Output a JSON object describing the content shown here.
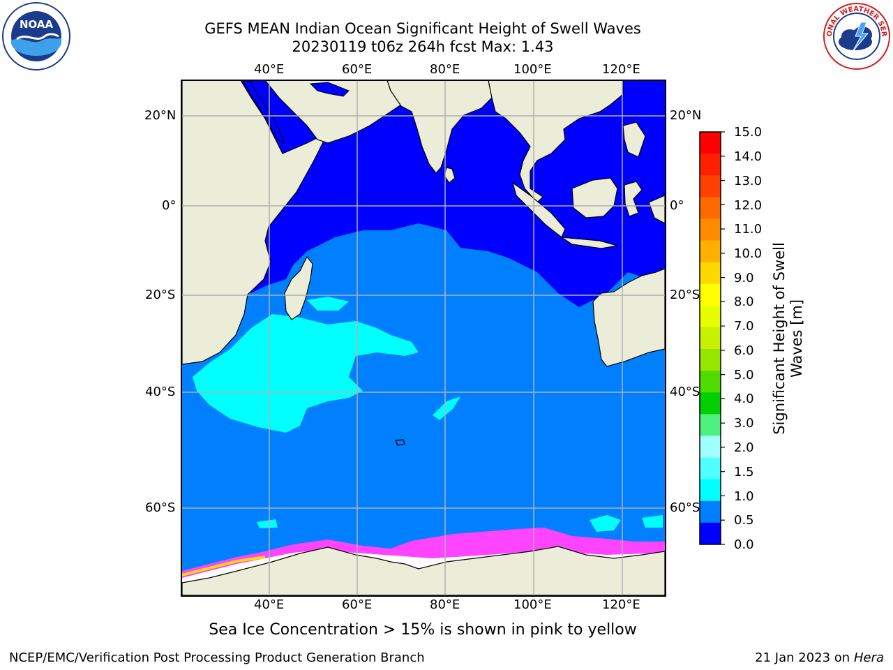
{
  "title": {
    "line1": "GEFS MEAN Indian Ocean Significant Height of Swell Waves",
    "line2": "20230119 t06z 264h fcst   Max: 1.43"
  },
  "map": {
    "top_lon_labels": [
      "40°E",
      "60°E",
      "80°E",
      "100°E",
      "120°E"
    ],
    "bottom_lon_labels": [
      "40°E",
      "60°E",
      "80°E",
      "100°E",
      "120°E"
    ],
    "left_lat_labels": [
      "20°N",
      "0°",
      "20°S",
      "40°S",
      "60°S"
    ],
    "right_lat_labels": [
      "20°N",
      "0°",
      "20°S",
      "40°S",
      "60°S"
    ],
    "colors": {
      "land": "#ecedd8",
      "ocean_0_0.5": "#0000ff",
      "ocean_0.5_1.0": "#0080ff",
      "ocean_1.0_1.5": "#00ffff",
      "sea_ice": "#ff44ff",
      "grid": "#b0b0b0"
    }
  },
  "colorbar": {
    "ticks": [
      "15.0",
      "14.0",
      "13.0",
      "12.0",
      "11.0",
      "10.0",
      "9.0",
      "8.0",
      "7.0",
      "6.0",
      "5.0",
      "4.0",
      "3.0",
      "2.0",
      "1.5",
      "1.0",
      "0.5",
      "0.0"
    ],
    "title_line1": "Significant Height of Swell",
    "title_line2": "Waves [m]",
    "segment_colors": [
      "#ff0000",
      "#ff2000",
      "#ff4000",
      "#ff6a00",
      "#ff8c00",
      "#ffb000",
      "#ffd800",
      "#ffff00",
      "#e6ff00",
      "#c8f000",
      "#96e600",
      "#50dc00",
      "#00d000",
      "#50f080",
      "#a0ffff",
      "#50ffff",
      "#00ffff",
      "#0080ff",
      "#0000ff"
    ]
  },
  "caption": "Sea Ice Concentration > 15% is shown in pink to yellow",
  "footer": {
    "left": "NCEP/EMC/Verification Post Processing Product Generation Branch",
    "right_prefix": "21 Jan 2023 on ",
    "right_host": "Hera"
  },
  "logos": {
    "noaa_text": "NOAA",
    "nws_text": "NATIONAL WEATHER SERVICE"
  }
}
